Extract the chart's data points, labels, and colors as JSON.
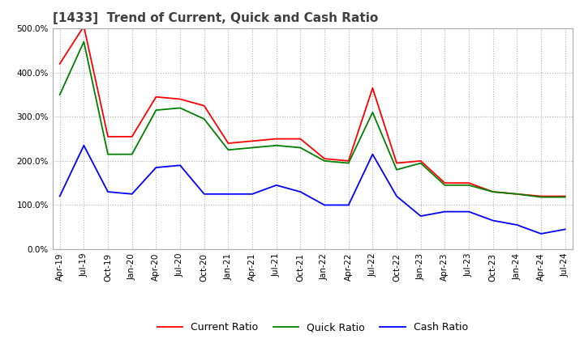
{
  "title": "[1433]  Trend of Current, Quick and Cash Ratio",
  "x_labels": [
    "Apr-19",
    "Jul-19",
    "Oct-19",
    "Jan-20",
    "Apr-20",
    "Jul-20",
    "Oct-20",
    "Jan-21",
    "Apr-21",
    "Jul-21",
    "Oct-21",
    "Jan-22",
    "Apr-22",
    "Jul-22",
    "Oct-22",
    "Jan-23",
    "Apr-23",
    "Jul-23",
    "Oct-23",
    "Jan-24",
    "Apr-24",
    "Jul-24"
  ],
  "current_ratio": [
    420,
    505,
    255,
    255,
    345,
    340,
    325,
    240,
    245,
    250,
    250,
    205,
    200,
    365,
    195,
    200,
    150,
    150,
    130,
    125,
    120,
    120
  ],
  "quick_ratio": [
    350,
    470,
    215,
    215,
    315,
    320,
    295,
    225,
    230,
    235,
    230,
    200,
    195,
    310,
    180,
    195,
    145,
    145,
    130,
    125,
    118,
    118
  ],
  "cash_ratio": [
    120,
    235,
    130,
    125,
    185,
    190,
    125,
    125,
    125,
    145,
    130,
    100,
    100,
    215,
    120,
    75,
    85,
    85,
    65,
    55,
    35,
    45
  ],
  "ylim": [
    0,
    500
  ],
  "yticks": [
    0,
    100,
    200,
    300,
    400,
    500
  ],
  "current_color": "#ff0000",
  "quick_color": "#008000",
  "cash_color": "#0000ff",
  "bg_color": "#ffffff",
  "plot_bg_color": "#ffffff",
  "grid_color": "#b0b0b0",
  "title_fontsize": 11,
  "tick_fontsize": 7.5,
  "legend_fontsize": 9
}
